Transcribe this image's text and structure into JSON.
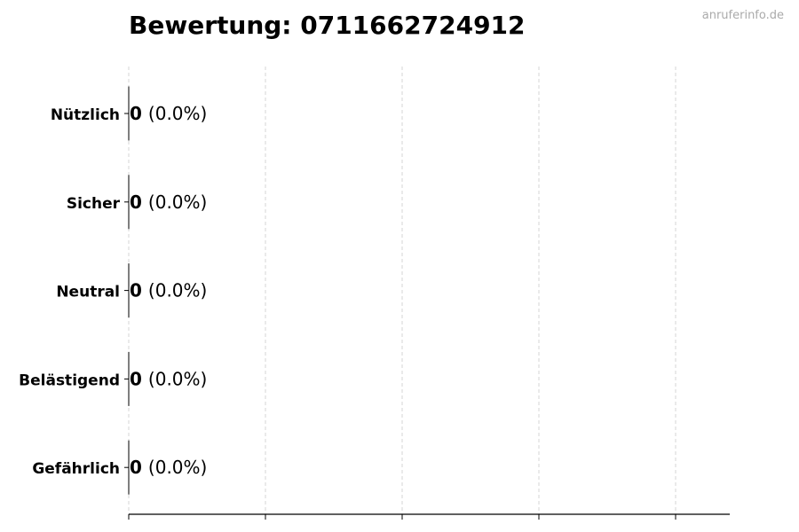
{
  "title": "Bewertung: 0711662724912",
  "watermark": "anruferinfo.de",
  "chart_data": {
    "type": "bar",
    "orientation": "horizontal",
    "title": "Bewertung: 0711662724912",
    "categories": [
      "Nützlich",
      "Sicher",
      "Neutral",
      "Belästigend",
      "Gefährlich"
    ],
    "values": [
      0,
      0,
      0,
      0,
      0
    ],
    "percent_labels": [
      "(0.0%)",
      "(0.0%)",
      "(0.0%)",
      "(0.0%)",
      "(0.0%)"
    ],
    "value_labels": [
      "0",
      "0",
      "0",
      "0",
      "0"
    ],
    "xlabel": "",
    "ylabel": "",
    "x_tick_labels_shown": false,
    "grid": "vertical dashed",
    "colors": {
      "bar_edge": "#000000",
      "grid": "#cccccc"
    }
  }
}
